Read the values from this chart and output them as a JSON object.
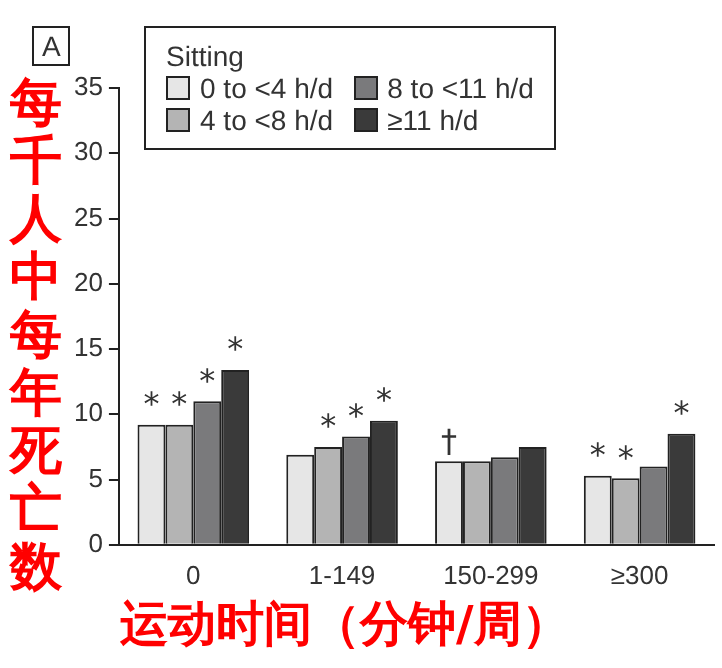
{
  "chart_data": {
    "type": "bar",
    "xlabel": "运动时间（分钟/周）",
    "ylabel": "每千人中每年死亡数",
    "legend_title": "Sitting",
    "annotations": [
      "A"
    ],
    "categories": [
      "0",
      "1-149",
      "150-299",
      "≥300"
    ],
    "series": [
      {
        "name": "0 to <4 h/d",
        "color": "#e6e6e6",
        "values": [
          9.2,
          6.9,
          6.4,
          5.3
        ],
        "value_labels": [
          "*",
          null,
          "†",
          "*"
        ]
      },
      {
        "name": "4 to <8 h/d",
        "color": "#b4b4b4",
        "values": [
          9.2,
          7.5,
          6.4,
          5.1
        ],
        "value_labels": [
          "*",
          "*",
          null,
          "*"
        ]
      },
      {
        "name": "8 to <11 h/d",
        "color": "#7a7a7c",
        "values": [
          11.0,
          8.3,
          6.7,
          6.0
        ],
        "value_labels": [
          "*",
          "*",
          null,
          null
        ]
      },
      {
        "name": "≥11 h/d",
        "color": "#3a3a3a",
        "values": [
          13.4,
          9.5,
          7.5,
          8.5
        ],
        "value_labels": [
          "*",
          "*",
          null,
          "*"
        ]
      }
    ],
    "ylim": [
      0,
      35
    ],
    "yticks": [
      0,
      5,
      10,
      15,
      20,
      25,
      30,
      35
    ],
    "grid": false,
    "legend": "top"
  }
}
